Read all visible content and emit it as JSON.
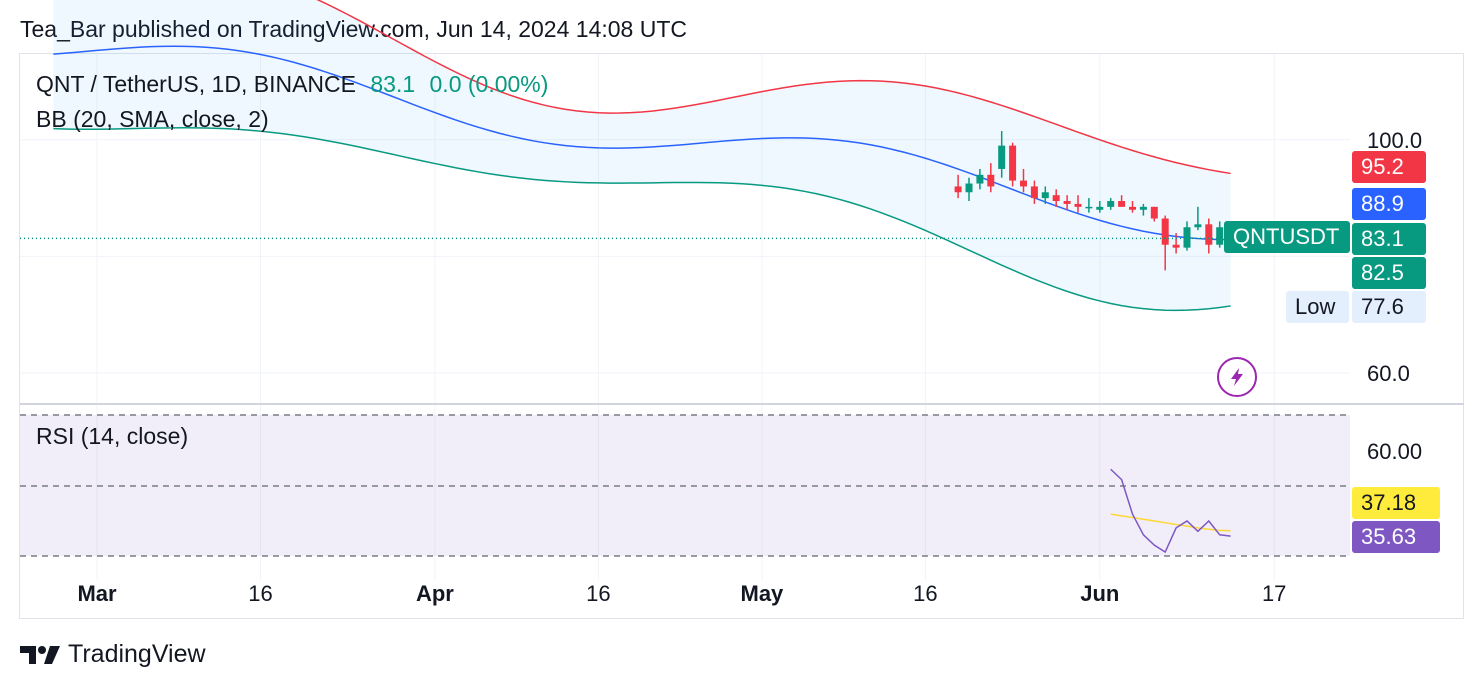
{
  "header": {
    "text": "Tea_Bar published on TradingView.com, Jun 14, 2024 14:08 UTC"
  },
  "legend": {
    "symbol": "QNT / TetherUS, 1D, BINANCE",
    "last": "83.1",
    "change": "0.0 (0.00%)",
    "bb": "BB (20, SMA, close, 2)",
    "rsi": "RSI (14, close)"
  },
  "price_axis": {
    "ticks": [
      "100.0",
      "60.0"
    ],
    "upper_band": "95.2",
    "basis": "88.9",
    "symbol_tag": "QNTUSDT",
    "last_price": "83.1",
    "lower_band": "82.5",
    "low_label": "Low",
    "low_value": "77.6"
  },
  "rsi_axis": {
    "tick": "60.00",
    "rsi_ma": "37.18",
    "rsi": "35.63"
  },
  "x_axis": {
    "labels": [
      {
        "text": "Mar",
        "bold": true,
        "day": 1
      },
      {
        "text": "16",
        "bold": false,
        "day": 16
      },
      {
        "text": "Apr",
        "bold": true,
        "day": 32
      },
      {
        "text": "16",
        "bold": false,
        "day": 47
      },
      {
        "text": "May",
        "bold": true,
        "day": 62
      },
      {
        "text": "16",
        "bold": false,
        "day": 77
      },
      {
        "text": "Jun",
        "bold": true,
        "day": 93
      },
      {
        "text": "17",
        "bold": false,
        "day": 109
      }
    ]
  },
  "footer": {
    "brand": "TradingView"
  },
  "colors": {
    "up": "#089981",
    "down": "#f23645",
    "bb_upper": "#f23645",
    "bb_basis": "#2962ff",
    "bb_lower": "#089981",
    "rsi": "#7e57c2",
    "rsi_ma": "#fdd835",
    "bolt": "#9c27b0"
  },
  "chart_data": [
    {
      "type": "candlestick",
      "title": "QNT / TetherUS, 1D, BINANCE",
      "y_ticks": [
        60,
        100
      ],
      "last_price": 83.1,
      "low": 77.6,
      "note": "approximate daily OHLC read from chart, Jun 1 = day 93",
      "candles": [
        {
          "day": 80,
          "o": 92.0,
          "h": 94.0,
          "l": 90.0,
          "c": 91.0
        },
        {
          "day": 81,
          "o": 91.0,
          "h": 93.5,
          "l": 89.5,
          "c": 92.5
        },
        {
          "day": 82,
          "o": 92.5,
          "h": 95.0,
          "l": 91.5,
          "c": 94.0
        },
        {
          "day": 83,
          "o": 94.0,
          "h": 96.0,
          "l": 91.0,
          "c": 92.0
        },
        {
          "day": 84,
          "o": 95.0,
          "h": 101.5,
          "l": 93.5,
          "c": 99.0
        },
        {
          "day": 85,
          "o": 99.0,
          "h": 99.5,
          "l": 92.0,
          "c": 93.0
        },
        {
          "day": 86,
          "o": 93.0,
          "h": 95.0,
          "l": 91.0,
          "c": 92.0
        },
        {
          "day": 87,
          "o": 92.0,
          "h": 93.0,
          "l": 89.0,
          "c": 90.0
        },
        {
          "day": 88,
          "o": 90.0,
          "h": 92.0,
          "l": 89.0,
          "c": 91.0
        },
        {
          "day": 89,
          "o": 90.5,
          "h": 91.5,
          "l": 88.5,
          "c": 89.5
        },
        {
          "day": 90,
          "o": 89.5,
          "h": 90.5,
          "l": 88.0,
          "c": 89.0
        },
        {
          "day": 91,
          "o": 89.0,
          "h": 90.5,
          "l": 87.5,
          "c": 88.5
        },
        {
          "day": 92,
          "o": 88.5,
          "h": 90.0,
          "l": 87.5,
          "c": 88.5
        },
        {
          "day": 93,
          "o": 88.0,
          "h": 89.5,
          "l": 87.5,
          "c": 88.5
        },
        {
          "day": 94,
          "o": 88.5,
          "h": 90.0,
          "l": 88.0,
          "c": 89.5
        },
        {
          "day": 95,
          "o": 89.5,
          "h": 90.5,
          "l": 88.5,
          "c": 88.5
        },
        {
          "day": 96,
          "o": 88.5,
          "h": 89.5,
          "l": 87.5,
          "c": 88.0
        },
        {
          "day": 97,
          "o": 88.0,
          "h": 89.0,
          "l": 87.0,
          "c": 88.5
        },
        {
          "day": 98,
          "o": 88.5,
          "h": 88.5,
          "l": 86.0,
          "c": 86.5
        },
        {
          "day": 99,
          "o": 86.5,
          "h": 87.0,
          "l": 77.6,
          "c": 82.0
        },
        {
          "day": 100,
          "o": 82.0,
          "h": 84.0,
          "l": 80.5,
          "c": 81.5
        },
        {
          "day": 101,
          "o": 81.5,
          "h": 86.0,
          "l": 81.0,
          "c": 85.0
        },
        {
          "day": 102,
          "o": 85.0,
          "h": 88.5,
          "l": 84.5,
          "c": 85.5
        },
        {
          "day": 103,
          "o": 85.5,
          "h": 86.5,
          "l": 80.5,
          "c": 82.0
        },
        {
          "day": 104,
          "o": 82.0,
          "h": 86.0,
          "l": 81.5,
          "c": 85.0
        },
        {
          "day": 105,
          "o": 85.0,
          "h": 86.0,
          "l": 82.0,
          "c": 83.1
        }
      ]
    },
    {
      "type": "line",
      "title": "RSI (14, close)",
      "y_ticks": [
        60
      ],
      "series": [
        {
          "name": "RSI",
          "values": [
            55,
            52,
            42,
            36,
            33,
            31,
            38,
            40,
            37,
            40,
            36,
            35.6
          ]
        },
        {
          "name": "MA",
          "values": [
            42,
            41.5,
            41,
            40.5,
            40,
            39.5,
            39,
            38.5,
            38,
            37.6,
            37.3,
            37.18
          ]
        }
      ],
      "x": [
        94,
        95,
        96,
        97,
        98,
        99,
        100,
        101,
        102,
        103,
        104,
        105
      ]
    }
  ]
}
